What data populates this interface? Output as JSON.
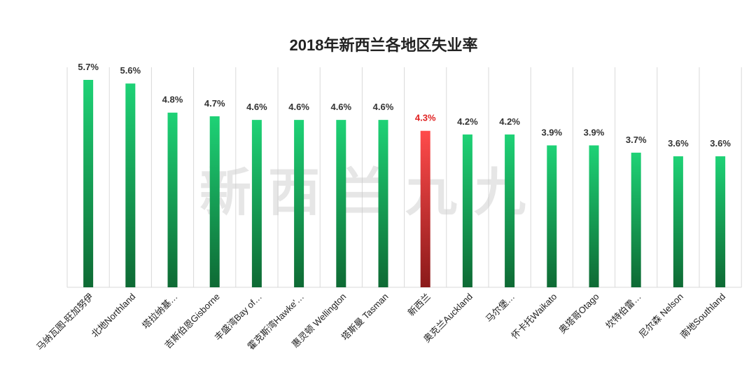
{
  "chart_data": {
    "type": "bar",
    "title": "2018年新西兰各地区失业率",
    "xlabel": "",
    "ylabel": "",
    "categories": [
      "马纳瓦图-旺加努伊",
      "北地Northland",
      "塔拉纳基…",
      "吉斯伯恩Gisborne",
      "丰盛湾Bay of…",
      "霍克斯湾Hawke'…",
      "惠灵顿 Wellington",
      "塔斯曼 Tasman",
      "新西兰",
      "奥克兰Auckland",
      "马尔堡…",
      "怀卡托Waikato",
      "奥塔哥Otago",
      "坎特伯雷…",
      "尼尔森 Nelson",
      "南地Southland"
    ],
    "values": [
      5.7,
      5.6,
      4.8,
      4.7,
      4.6,
      4.6,
      4.6,
      4.6,
      4.3,
      4.2,
      4.2,
      3.9,
      3.9,
      3.7,
      3.6,
      3.6
    ],
    "value_labels": [
      "5.7%",
      "5.6%",
      "4.8%",
      "4.7%",
      "4.6%",
      "4.6%",
      "4.6%",
      "4.6%",
      "4.3%",
      "4.2%",
      "4.2%",
      "3.9%",
      "3.9%",
      "3.7%",
      "3.6%",
      "3.6%"
    ],
    "highlight_index": 8,
    "ylim": [
      0,
      6
    ],
    "grid": "vertical category separators",
    "legend": "none",
    "colors": {
      "bar_top": "#1ed276",
      "bar_bottom": "#0e6a34",
      "highlight_top": "#ff4b4b",
      "highlight_bottom": "#8b1a1a",
      "value_label": "#333333",
      "highlight_label": "#e02020",
      "grid": "#d9d9d9",
      "watermark": "#c8c8c8"
    }
  },
  "watermark": {
    "text": "新西兰九九"
  }
}
